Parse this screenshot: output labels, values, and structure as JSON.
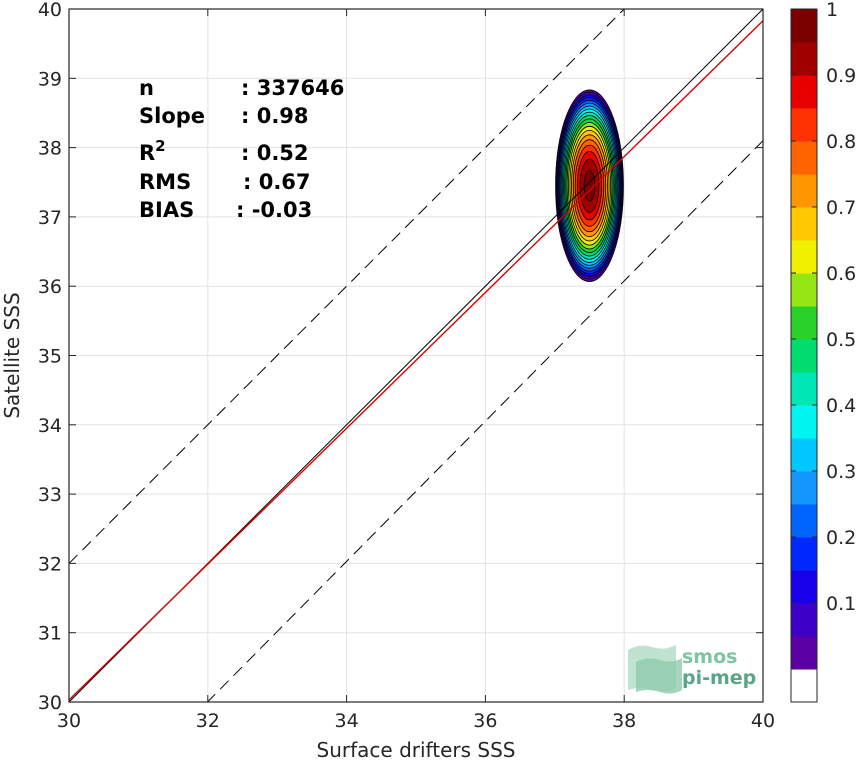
{
  "chart_data": {
    "type": "heatmap",
    "title": "",
    "xlabel": "Surface drifters SSS",
    "ylabel": "Satellite SSS",
    "xlim": [
      30,
      40
    ],
    "ylim": [
      30,
      40
    ],
    "x_ticks": [
      "30",
      "32",
      "34",
      "36",
      "38",
      "40"
    ],
    "y_ticks": [
      "30",
      "31",
      "32",
      "33",
      "34",
      "35",
      "36",
      "37",
      "38",
      "39",
      "40"
    ],
    "grid": true,
    "lines": [
      {
        "id": "identity",
        "color": "#000000",
        "style": "solid",
        "points": [
          [
            30,
            30
          ],
          [
            40,
            40
          ]
        ]
      },
      {
        "id": "regression",
        "color": "#e00000",
        "style": "solid",
        "points": [
          [
            30,
            30.03
          ],
          [
            40,
            39.83
          ]
        ]
      },
      {
        "id": "upper_bound",
        "color": "#000000",
        "style": "dashed",
        "points": [
          [
            30,
            32.0
          ],
          [
            38.4,
            40.4
          ]
        ]
      },
      {
        "id": "lower_bound",
        "color": "#000000",
        "style": "dashed",
        "points": [
          [
            31.6,
            29.6
          ],
          [
            40,
            38.1
          ]
        ]
      }
    ],
    "density": {
      "center": [
        37.5,
        37.45
      ],
      "max_level": 1.0,
      "extent_x": [
        36.98,
        37.97
      ],
      "extent_y": [
        36.05,
        38.85
      ]
    },
    "colorbar": {
      "ticks": [
        "0.1",
        "0.2",
        "0.3",
        "0.4",
        "0.5",
        "0.6",
        "0.7",
        "0.8",
        "0.9",
        "1"
      ],
      "tick_values": [
        0.1,
        0.2,
        0.3,
        0.4,
        0.5,
        0.6,
        0.7,
        0.8,
        0.9,
        1.0
      ],
      "levels": 20,
      "colors": [
        "#ffffff",
        "#5a00a3",
        "#3c00c8",
        "#1800e8",
        "#0028ff",
        "#0064ff",
        "#1496ff",
        "#00c8ff",
        "#00f5f0",
        "#00e6b4",
        "#00dc6e",
        "#28d228",
        "#96e614",
        "#f0f000",
        "#ffc800",
        "#ff9600",
        "#ff6400",
        "#ff3200",
        "#e60000",
        "#a00000",
        "#7a0000"
      ]
    },
    "annotations": [
      {
        "label": "n",
        "value": ": 337646"
      },
      {
        "label": "Slope",
        "value": ": 0.98"
      },
      {
        "label": "R",
        "sup": "2",
        "value": ": 0.52"
      },
      {
        "label": "RMS",
        "value": ": 0.67"
      },
      {
        "label": "BIAS",
        "value": ": -0.03"
      }
    ]
  },
  "logo": {
    "line1": "smos",
    "line2": "pi-mep"
  }
}
